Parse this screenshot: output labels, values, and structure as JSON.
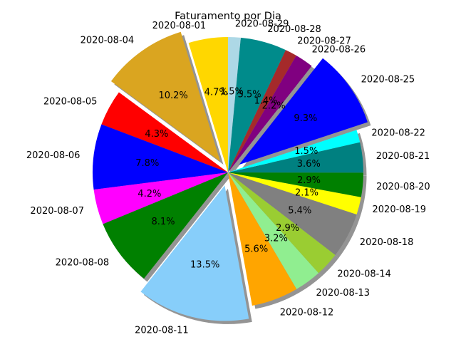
{
  "chart_data": {
    "type": "pie",
    "title": "Faturamento por Dia",
    "start_angle_deg": 90,
    "direction": "counterclockwise",
    "shadow": true,
    "autopct_decimals": 1,
    "slices": [
      {
        "label": "2020-08-01",
        "value": 4.7,
        "color": "#FFD700",
        "explode": false
      },
      {
        "label": "2020-08-04",
        "value": 10.2,
        "color": "#DAA520",
        "explode": true
      },
      {
        "label": "2020-08-05",
        "value": 4.3,
        "color": "#FF0000",
        "explode": false
      },
      {
        "label": "2020-08-06",
        "value": 7.8,
        "color": "#0000FF",
        "explode": false
      },
      {
        "label": "2020-08-07",
        "value": 4.2,
        "color": "#FF00FF",
        "explode": false
      },
      {
        "label": "2020-08-08",
        "value": 8.1,
        "color": "#008000",
        "explode": false
      },
      {
        "label": "2020-08-11",
        "value": 13.5,
        "color": "#87CEFA",
        "explode": true
      },
      {
        "label": "2020-08-12",
        "value": 5.6,
        "color": "#FFA500",
        "explode": false
      },
      {
        "label": "2020-08-13",
        "value": 3.2,
        "color": "#90EE90",
        "explode": false
      },
      {
        "label": "2020-08-14",
        "value": 2.9,
        "color": "#9ACD32",
        "explode": false
      },
      {
        "label": "2020-08-18",
        "value": 5.4,
        "color": "#808080",
        "explode": false
      },
      {
        "label": "2020-08-19",
        "value": 2.1,
        "color": "#FFFF00",
        "explode": false
      },
      {
        "label": "2020-08-20",
        "value": 2.9,
        "color": "#008000",
        "explode": false
      },
      {
        "label": "2020-08-21",
        "value": 3.6,
        "color": "#008080",
        "explode": false
      },
      {
        "label": "2020-08-22",
        "value": 1.5,
        "color": "#00FFFF",
        "explode": false
      },
      {
        "label": "2020-08-25",
        "value": 9.3,
        "color": "#0000FF",
        "explode": true
      },
      {
        "label": "2020-08-26",
        "value": 2.2,
        "color": "#800080",
        "explode": false
      },
      {
        "label": "2020-08-27",
        "value": 1.4,
        "color": "#A52A2A",
        "explode": false
      },
      {
        "label": "2020-08-28",
        "value": 5.5,
        "color": "#008B8B",
        "explode": false
      },
      {
        "label": "2020-08-29",
        "value": 1.5,
        "color": "#ADD8E6",
        "explode": false
      }
    ]
  }
}
